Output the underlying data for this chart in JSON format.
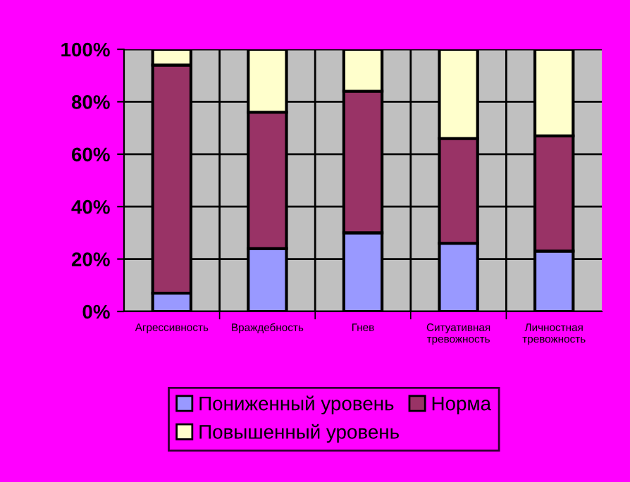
{
  "chart_data": {
    "type": "bar",
    "stacked": true,
    "categories": [
      "Агрессивность",
      "Враждебность",
      "Гнев",
      "Ситуативная тревожность",
      "Личностная тревожность"
    ],
    "series": [
      {
        "name": "Пониженный уровень",
        "color": "#9999ff",
        "values": [
          7,
          24,
          30,
          26,
          23
        ]
      },
      {
        "name": "Норма",
        "color": "#993366",
        "values": [
          87,
          52,
          54,
          40,
          44
        ]
      },
      {
        "name": "Повышенный уровень",
        "color": "#ffffcc",
        "values": [
          6,
          24,
          16,
          34,
          33
        ]
      }
    ],
    "ylim": [
      0,
      100
    ],
    "yticks": [
      {
        "value": 0,
        "label": "0%"
      },
      {
        "value": 20,
        "label": "20%"
      },
      {
        "value": 40,
        "label": "40%"
      },
      {
        "value": 60,
        "label": "60%"
      },
      {
        "value": 80,
        "label": "80%"
      },
      {
        "value": 100,
        "label": "100%"
      }
    ],
    "grid": true,
    "legend": "bottom"
  }
}
